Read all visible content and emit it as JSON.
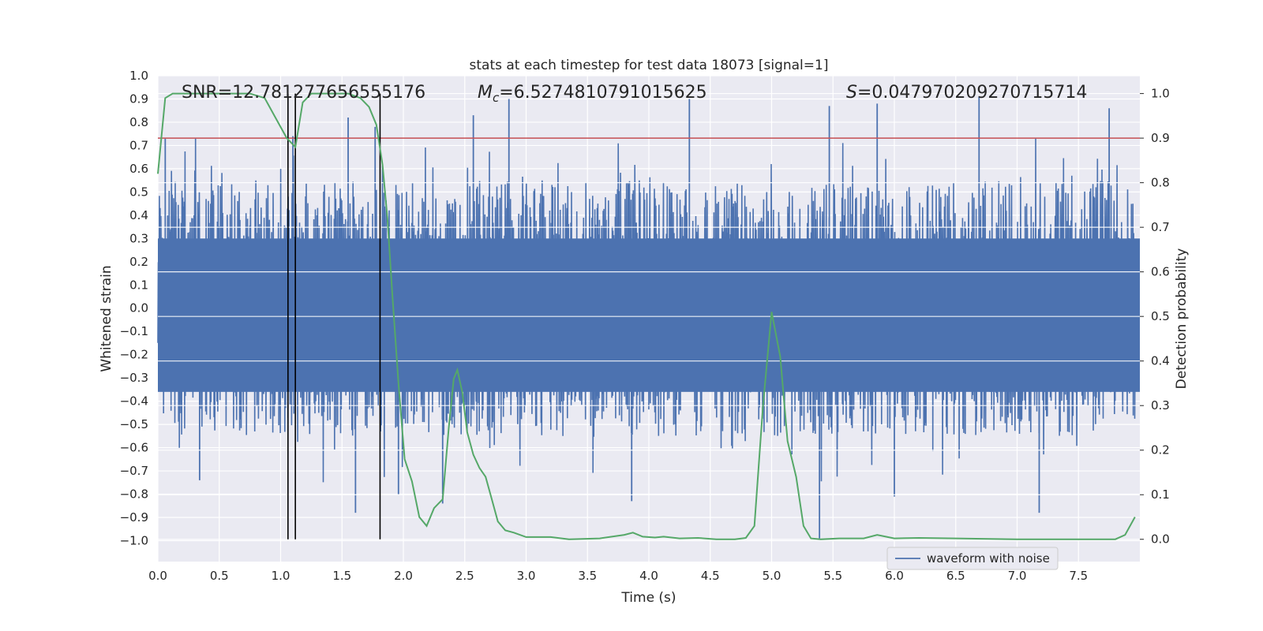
{
  "chart_data": {
    "type": "line",
    "title": "stats at each timestep for test data 18073 [signal=1]",
    "xlabel": "Time (s)",
    "ylabel": "Whitened strain",
    "y2label": "Detection probability",
    "xlim": [
      0.0,
      8.0
    ],
    "ylim": [
      -1.09,
      1.0
    ],
    "y2lim": [
      -0.05,
      1.04
    ],
    "grid": true,
    "legend_position": "lower-right",
    "x_ticks": [
      "0.0",
      "0.5",
      "1.0",
      "1.5",
      "2.0",
      "2.5",
      "3.0",
      "3.5",
      "4.0",
      "4.5",
      "5.0",
      "5.5",
      "6.0",
      "6.5",
      "7.0",
      "7.5"
    ],
    "y_ticks": [
      "1.0",
      "0.9",
      "0.8",
      "0.7",
      "0.6",
      "0.5",
      "0.4",
      "0.3",
      "0.2",
      "0.1",
      "0.0",
      "−0.1",
      "−0.2",
      "−0.3",
      "−0.4",
      "−0.5",
      "−0.6",
      "−0.7",
      "−0.8",
      "−0.9",
      "−1.0"
    ],
    "y2_ticks": [
      "1.0",
      "0.9",
      "0.8",
      "0.7",
      "0.6",
      "0.5",
      "0.4",
      "0.3",
      "0.2",
      "0.1",
      "0.0"
    ],
    "annotations": {
      "snr": "SNR=12.781277656555176",
      "mc_symbol": "M",
      "mc_sub": "c",
      "mc_value": "=6.5274810791015625",
      "s_symbol": "S",
      "s_value": "=0.047970209270715714"
    },
    "threshold": {
      "value": 0.9,
      "axis": "y2",
      "color": "#c44e52"
    },
    "vertical_markers": [
      1.06,
      1.12,
      1.81
    ],
    "series": [
      {
        "name": "waveform with noise",
        "axis": "y",
        "color": "#4c72b0",
        "envelope": {
          "start": 0.0,
          "end": 7.98,
          "typical_amplitude": 0.5,
          "max_peak": 0.91,
          "min_trough": -0.99
        },
        "peaks": [
          {
            "x": 0.06,
            "y": 0.73
          },
          {
            "x": 1.1,
            "y": 0.74
          },
          {
            "x": 1.55,
            "y": 0.82
          },
          {
            "x": 1.77,
            "y": 0.78
          },
          {
            "x": 2.57,
            "y": 0.83
          },
          {
            "x": 2.86,
            "y": 0.9
          },
          {
            "x": 4.33,
            "y": 0.9
          },
          {
            "x": 5.47,
            "y": 0.87
          },
          {
            "x": 5.86,
            "y": 0.88
          },
          {
            "x": 6.69,
            "y": 0.91
          },
          {
            "x": 7.75,
            "y": 0.86
          }
        ],
        "troughs": [
          {
            "x": 0.34,
            "y": -0.74
          },
          {
            "x": 1.61,
            "y": -0.88
          },
          {
            "x": 1.96,
            "y": -0.8
          },
          {
            "x": 2.32,
            "y": -0.84
          },
          {
            "x": 3.86,
            "y": -0.83
          },
          {
            "x": 5.39,
            "y": -0.99
          },
          {
            "x": 6.0,
            "y": -0.81
          },
          {
            "x": 7.18,
            "y": -0.88
          }
        ]
      },
      {
        "name": "detection probability",
        "axis": "y2",
        "color": "#55a868",
        "x": [
          0.0,
          0.06,
          0.12,
          0.25,
          0.5,
          0.75,
          0.87,
          0.95,
          1.05,
          1.12,
          1.18,
          1.25,
          1.4,
          1.55,
          1.65,
          1.72,
          1.78,
          1.83,
          1.87,
          1.91,
          1.96,
          2.01,
          2.07,
          2.13,
          2.19,
          2.25,
          2.32,
          2.37,
          2.41,
          2.44,
          2.48,
          2.52,
          2.57,
          2.62,
          2.67,
          2.72,
          2.77,
          2.83,
          2.9,
          3.0,
          3.1,
          3.2,
          3.35,
          3.6,
          3.8,
          3.87,
          3.95,
          4.05,
          4.12,
          4.25,
          4.4,
          4.55,
          4.7,
          4.79,
          4.86,
          4.93,
          5.0,
          5.07,
          5.13,
          5.2,
          5.26,
          5.32,
          5.4,
          5.55,
          5.75,
          5.86,
          5.93,
          6.0,
          6.2,
          6.5,
          7.0,
          7.5,
          7.8,
          7.88,
          7.96
        ],
        "y": [
          0.82,
          0.99,
          1.0,
          1.0,
          1.0,
          1.0,
          0.99,
          0.95,
          0.9,
          0.88,
          0.98,
          1.0,
          1.0,
          1.0,
          0.99,
          0.97,
          0.93,
          0.84,
          0.72,
          0.55,
          0.35,
          0.18,
          0.13,
          0.05,
          0.03,
          0.07,
          0.09,
          0.25,
          0.36,
          0.38,
          0.33,
          0.24,
          0.19,
          0.16,
          0.14,
          0.09,
          0.04,
          0.02,
          0.015,
          0.005,
          0.005,
          0.005,
          0.0,
          0.002,
          0.01,
          0.015,
          0.006,
          0.004,
          0.006,
          0.002,
          0.003,
          0.0,
          0.0,
          0.003,
          0.03,
          0.3,
          0.51,
          0.41,
          0.22,
          0.14,
          0.03,
          0.002,
          0.0,
          0.002,
          0.002,
          0.01,
          0.006,
          0.002,
          0.003,
          0.002,
          0.0,
          0.0,
          0.0,
          0.01,
          0.05
        ]
      }
    ]
  }
}
